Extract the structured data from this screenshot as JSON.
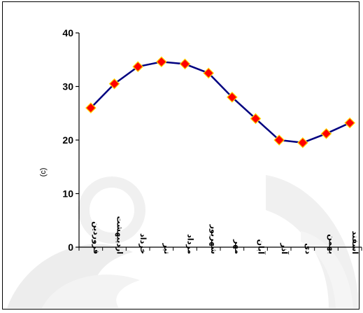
{
  "chart_data": {
    "type": "line",
    "title": "",
    "xlabel": "",
    "ylabel": "(c)",
    "categories": [
      "فروردین",
      "اردیبهشت",
      "خرداد",
      "تیر",
      "مرداد",
      "شهریور",
      "مهر",
      "آبان",
      "آذر",
      "دی",
      "بهمن",
      "اسفند"
    ],
    "series": [
      {
        "values": [
          26,
          30.5,
          33.7,
          34.6,
          34.2,
          32.5,
          28,
          24,
          20,
          19.5,
          21.2,
          23.2
        ]
      }
    ],
    "yticks": [
      "0",
      "10",
      "20",
      "30",
      "40"
    ],
    "ylim": [
      0,
      40
    ],
    "grid": false,
    "legend": "none",
    "colors": {
      "line": "#000080",
      "marker_fill": "#ff0000",
      "marker_stroke": "#ffd700",
      "watermark": "#e8e8e8"
    }
  }
}
